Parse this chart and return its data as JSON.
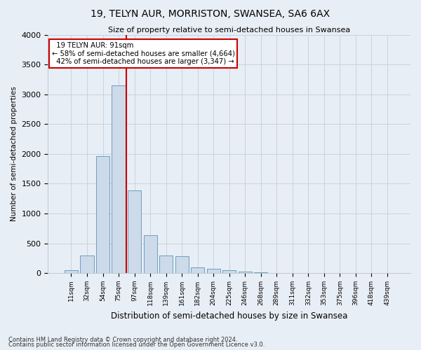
{
  "title": "19, TELYN AUR, MORRISTON, SWANSEA, SA6 6AX",
  "subtitle": "Size of property relative to semi-detached houses in Swansea",
  "xlabel": "Distribution of semi-detached houses by size in Swansea",
  "ylabel": "Number of semi-detached properties",
  "footnote1": "Contains HM Land Registry data © Crown copyright and database right 2024.",
  "footnote2": "Contains public sector information licensed under the Open Government Licence v3.0.",
  "property_label": "19 TELYN AUR: 91sqm",
  "pct_smaller": 58,
  "count_smaller": "4,664",
  "pct_larger": 42,
  "count_larger": "3,347",
  "bar_color": "#ccdaea",
  "bar_edge_color": "#6a9fc0",
  "annotation_box_color": "#ffffff",
  "annotation_box_edge": "#cc0000",
  "vline_color": "#cc0000",
  "grid_color": "#c8d4e0",
  "background_color": "#e8eef5",
  "categories": [
    "11sqm",
    "32sqm",
    "54sqm",
    "75sqm",
    "97sqm",
    "118sqm",
    "139sqm",
    "161sqm",
    "182sqm",
    "204sqm",
    "225sqm",
    "246sqm",
    "268sqm",
    "289sqm",
    "311sqm",
    "332sqm",
    "353sqm",
    "375sqm",
    "396sqm",
    "418sqm",
    "439sqm"
  ],
  "values": [
    50,
    300,
    1960,
    3150,
    1390,
    630,
    290,
    280,
    100,
    70,
    50,
    30,
    10,
    5,
    5,
    3,
    2,
    2,
    2,
    1,
    1
  ],
  "ylim": [
    0,
    4000
  ],
  "yticks": [
    0,
    500,
    1000,
    1500,
    2000,
    2500,
    3000,
    3500,
    4000
  ],
  "vline_between_index": 3,
  "figsize": [
    6.0,
    5.0
  ],
  "dpi": 100
}
